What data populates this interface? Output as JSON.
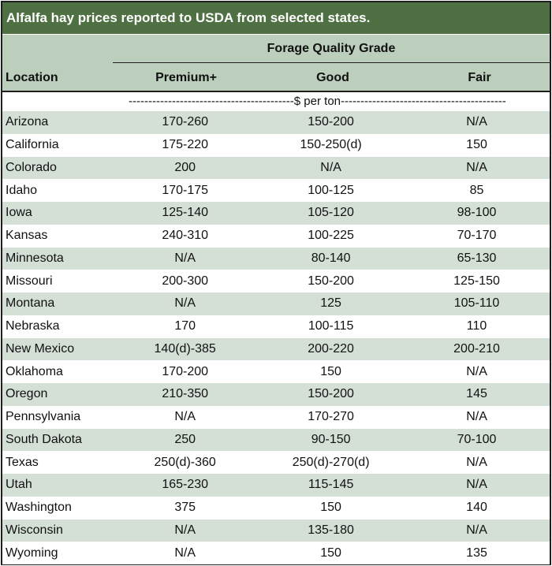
{
  "title": "Alfalfa hay prices reported to USDA from selected states.",
  "group_header": "Forage Quality Grade",
  "columns": {
    "location": "Location",
    "premium": "Premium+",
    "good": "Good",
    "fair": "Fair"
  },
  "units": "------------------------------------------$ per ton------------------------------------------",
  "rows": [
    {
      "location": "Arizona",
      "premium": "170-260",
      "good": "150-200",
      "fair": "N/A"
    },
    {
      "location": "California",
      "premium": "175-220",
      "good": "150-250(d)",
      "fair": "150"
    },
    {
      "location": "Colorado",
      "premium": "200",
      "good": "N/A",
      "fair": "N/A"
    },
    {
      "location": "Idaho",
      "premium": "170-175",
      "good": "100-125",
      "fair": "85"
    },
    {
      "location": "Iowa",
      "premium": "125-140",
      "good": "105-120",
      "fair": "98-100"
    },
    {
      "location": "Kansas",
      "premium": "240-310",
      "good": "100-225",
      "fair": "70-170"
    },
    {
      "location": "Minnesota",
      "premium": "N/A",
      "good": "80-140",
      "fair": "65-130"
    },
    {
      "location": "Missouri",
      "premium": "200-300",
      "good": "150-200",
      "fair": "125-150"
    },
    {
      "location": "Montana",
      "premium": "N/A",
      "good": "125",
      "fair": "105-110"
    },
    {
      "location": "Nebraska",
      "premium": "170",
      "good": "100-115",
      "fair": "110"
    },
    {
      "location": "New Mexico",
      "premium": "140(d)-385",
      "good": "200-220",
      "fair": "200-210"
    },
    {
      "location": "Oklahoma",
      "premium": "170-200",
      "good": "150",
      "fair": "N/A"
    },
    {
      "location": "Oregon",
      "premium": "210-350",
      "good": "150-200",
      "fair": "145"
    },
    {
      "location": "Pennsylvania",
      "premium": "N/A",
      "good": "170-270",
      "fair": "N/A"
    },
    {
      "location": "South Dakota",
      "premium": "250",
      "good": "90-150",
      "fair": "70-100"
    },
    {
      "location": "Texas",
      "premium": "250(d)-360",
      "good": "250(d)-270(d)",
      "fair": "N/A"
    },
    {
      "location": "Utah",
      "premium": "165-230",
      "good": "115-145",
      "fair": "N/A"
    },
    {
      "location": "Washington",
      "premium": "375",
      "good": "150",
      "fair": "140"
    },
    {
      "location": "Wisconsin",
      "premium": "N/A",
      "good": "135-180",
      "fair": "N/A"
    },
    {
      "location": "Wyoming",
      "premium": "N/A",
      "good": "150",
      "fair": "135"
    }
  ],
  "colors": {
    "title_bg": "#4f7043",
    "header_bg": "#bccfbd",
    "stripe_bg": "#d4e0d6"
  }
}
